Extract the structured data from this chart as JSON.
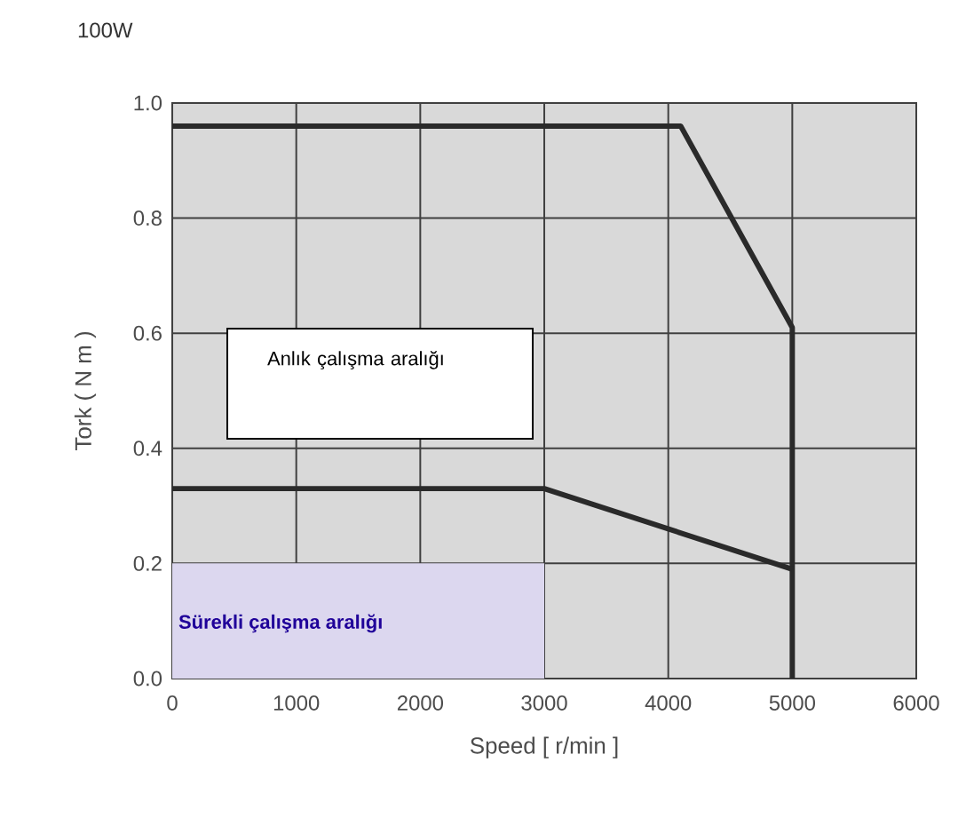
{
  "chart_data": {
    "type": "line",
    "title": "100W",
    "xlabel": "Speed [ r/min ]",
    "ylabel": "Tork ( N m )",
    "series": [
      {
        "type": "area",
        "color": "#dcd7ef",
        "x": [
          0,
          3000
        ],
        "values": [
          0.2,
          0.2
        ]
      },
      {
        "type": "line",
        "color": "#2a2a2a",
        "x": [
          0,
          4100,
          5000,
          5000
        ],
        "values": [
          0.96,
          0.96,
          0.61,
          0
        ]
      },
      {
        "type": "line",
        "color": "#2a2a2a",
        "x": [
          0,
          3000,
          5000
        ],
        "values": [
          0.33,
          0.33,
          0.19
        ]
      }
    ],
    "annotations": [
      "Anlık çalışma aralığı",
      "Sürekli çalışma aralığı"
    ],
    "xlim": [
      0,
      6000
    ],
    "ylim": [
      0,
      1.0
    ],
    "xticks": [
      0,
      1000,
      2000,
      3000,
      4000,
      5000,
      6000
    ],
    "yticks": [
      {
        "value": 0,
        "label": "0.0"
      },
      {
        "value": 0.2,
        "label": "0.2"
      },
      {
        "value": 0.4,
        "label": "0.4"
      },
      {
        "value": 0.6,
        "label": "0.6"
      },
      {
        "value": 0.8,
        "label": "0.8"
      },
      {
        "value": 1.0,
        "label": "1.0"
      }
    ],
    "grid": true,
    "marker": "none",
    "line_style": "solid"
  }
}
